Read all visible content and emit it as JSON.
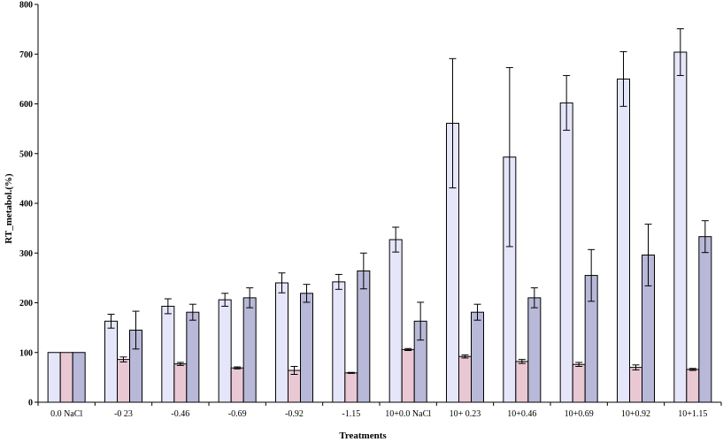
{
  "chart_data": {
    "type": "bar",
    "xlabel": "Treatments",
    "ylabel": "RT_metabol.(%)",
    "ylim": [
      0,
      800
    ],
    "yticks": [
      0,
      100,
      200,
      300,
      400,
      500,
      600,
      700,
      800
    ],
    "grid": false,
    "legend": "none",
    "categories": [
      "0.0 NaCl",
      "-0 23",
      "-0.46",
      "-0.69",
      "-0.92",
      "-1.15",
      "10+0.0 NaCl",
      "10+ 0.23",
      "10+0.46",
      "10+0.69",
      "10+0.92",
      "10+1.15"
    ],
    "series": [
      {
        "color": "#e6e6fa",
        "values": [
          100,
          163,
          193,
          206,
          240,
          242,
          327,
          561,
          493,
          602,
          650,
          704
        ],
        "errors": [
          0,
          14,
          15,
          13,
          20,
          15,
          25,
          130,
          180,
          55,
          55,
          47
        ]
      },
      {
        "color": "#e9c8d4",
        "values": [
          100,
          86,
          77,
          69,
          64,
          59,
          106,
          92,
          82,
          76,
          70,
          66
        ],
        "errors": [
          0,
          5,
          3,
          2,
          8,
          1,
          2,
          3,
          4,
          4,
          5,
          2
        ]
      },
      {
        "color": "#b8b8d8",
        "values": [
          100,
          145,
          181,
          210,
          219,
          264,
          163,
          181,
          210,
          255,
          296,
          333
        ],
        "errors": [
          0,
          38,
          16,
          20,
          18,
          36,
          38,
          16,
          20,
          52,
          62,
          32
        ]
      }
    ]
  }
}
